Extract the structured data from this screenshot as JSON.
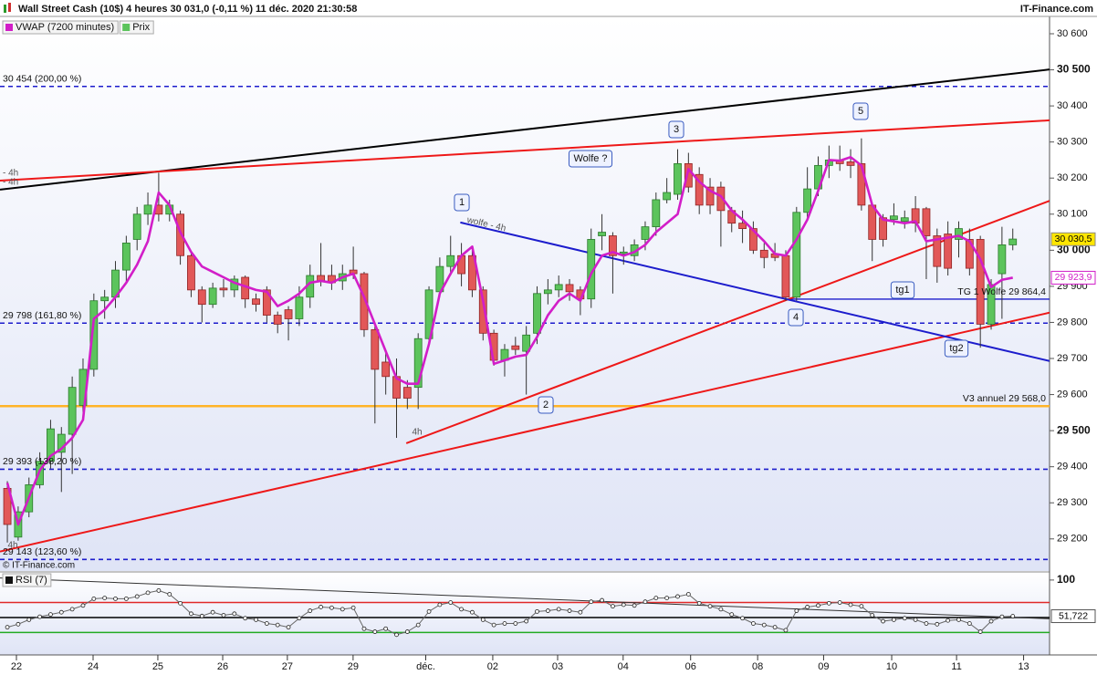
{
  "header": {
    "title": "Wall Street Cash (10$) 4 heures 30 031,0 (-0,11 %) 11 déc. 2020 21:30:58",
    "site": "IT-Finance.com",
    "copyright": "© IT-Finance.com"
  },
  "chart_data": [
    {
      "type": "candlestick",
      "x": [
        0,
        1,
        2,
        3,
        4,
        5,
        6,
        7,
        8,
        9,
        10,
        11,
        12,
        13,
        14,
        15,
        16,
        17,
        18,
        19,
        20,
        21,
        22,
        23,
        24,
        25,
        26,
        27,
        28,
        29,
        30,
        31,
        32,
        33,
        34,
        35,
        36,
        37,
        38,
        39,
        40,
        41,
        42,
        43,
        44,
        45,
        46,
        47,
        48,
        49,
        50,
        51,
        52,
        53,
        54,
        55,
        56,
        57,
        58,
        59,
        60,
        61,
        62,
        63,
        64,
        65,
        66,
        67,
        68,
        69,
        70,
        71,
        72,
        73,
        74,
        75,
        76,
        77,
        78,
        79,
        80,
        81,
        82,
        83,
        84,
        85,
        86,
        87,
        88,
        89,
        90,
        91,
        92,
        93
      ],
      "xlim": [
        -0.68,
        96.4
      ],
      "xticks": [
        {
          "value": 0.84,
          "label": "22"
        },
        {
          "value": 7.93,
          "label": "24"
        },
        {
          "value": 13.92,
          "label": "25"
        },
        {
          "value": 19.92,
          "label": "26"
        },
        {
          "value": 25.9,
          "label": "27"
        },
        {
          "value": 31.98,
          "label": "29"
        },
        {
          "value": 38.7,
          "label": "déc."
        },
        {
          "value": 44.9,
          "label": "02"
        },
        {
          "value": 50.9,
          "label": "03"
        },
        {
          "value": 56.96,
          "label": "04"
        },
        {
          "value": 63.2,
          "label": "06"
        },
        {
          "value": 69.4,
          "label": "08"
        },
        {
          "value": 75.5,
          "label": "09"
        },
        {
          "value": 81.8,
          "label": "10"
        },
        {
          "value": 87.8,
          "label": "11"
        },
        {
          "value": 94.0,
          "label": "13"
        }
      ],
      "ylim": [
        29111,
        30648
      ],
      "yticks": [
        {
          "value": 29200,
          "label": "29 200"
        },
        {
          "value": 29300,
          "label": "29 300"
        },
        {
          "value": 29400,
          "label": "29 400"
        },
        {
          "value": 29500,
          "label": "29 500"
        },
        {
          "value": 29600,
          "label": "29 600"
        },
        {
          "value": 29700,
          "label": "29 700"
        },
        {
          "value": 29800,
          "label": "29 800"
        },
        {
          "value": 29900,
          "label": "29 900"
        },
        {
          "value": 30000,
          "label": "30 000"
        },
        {
          "value": 30100,
          "label": "30 100"
        },
        {
          "value": 30200,
          "label": "30 200"
        },
        {
          "value": 30300,
          "label": "30 300"
        },
        {
          "value": 30400,
          "label": "30 400"
        },
        {
          "value": 30500,
          "label": "30 500"
        },
        {
          "value": 30600,
          "label": "30 600"
        }
      ],
      "candles": {
        "name": "Prix",
        "up_color": "#5cc45c",
        "down_color": "#e25858",
        "open": [
          29340,
          29205,
          29275,
          29350,
          29415,
          29440,
          29490,
          29570,
          29670,
          29860,
          29870,
          29945,
          30030,
          30100,
          30125,
          30100,
          30100,
          29985,
          29890,
          29850,
          29895,
          29890,
          29925,
          29865,
          29890,
          29820,
          29835,
          29810,
          29870,
          29930,
          29930,
          29915,
          29945,
          29935,
          29780,
          29690,
          29650,
          29620,
          29620,
          29755,
          29885,
          29955,
          29985,
          29985,
          29890,
          29770,
          29695,
          29735,
          29720,
          29770,
          29880,
          29890,
          29905,
          29890,
          29865,
          30040,
          30040,
          29990,
          29985,
          30030,
          30065,
          30140,
          30155,
          30240,
          30210,
          30175,
          30175,
          30110,
          30075,
          30060,
          30000,
          29990,
          29985,
          29870,
          30105,
          30170,
          30235,
          30250,
          30245,
          30240,
          30125,
          30090,
          30085,
          30080,
          30115,
          30115,
          30040,
          30045,
          30030,
          30030,
          30030,
          29795,
          29935,
          30015
        ],
        "high": [
          29360,
          29290,
          29370,
          29440,
          29530,
          29510,
          29650,
          29700,
          29880,
          29890,
          29970,
          30040,
          30120,
          30160,
          30215,
          30140,
          30110,
          29990,
          29900,
          29910,
          29920,
          29930,
          29930,
          29880,
          29900,
          29830,
          29845,
          29900,
          29960,
          30020,
          29960,
          29960,
          30010,
          29940,
          29790,
          29720,
          29700,
          29640,
          29770,
          29900,
          29980,
          30040,
          30020,
          30000,
          29900,
          29780,
          29740,
          29760,
          29790,
          29900,
          29920,
          29930,
          29920,
          29900,
          30060,
          30100,
          30050,
          30010,
          30030,
          30080,
          30160,
          30200,
          30280,
          30270,
          30230,
          30200,
          30190,
          30120,
          30110,
          30080,
          30020,
          30020,
          30000,
          30120,
          30230,
          30260,
          30290,
          30290,
          30280,
          30310,
          30130,
          30100,
          30130,
          30110,
          30150,
          30120,
          30060,
          30080,
          30080,
          30060,
          30040,
          29920,
          30065,
          30060
        ],
        "low": [
          29190,
          29195,
          29260,
          29340,
          29395,
          29330,
          29380,
          29550,
          29650,
          29810,
          29840,
          29910,
          30000,
          30070,
          30080,
          30080,
          29960,
          29870,
          29800,
          29840,
          29870,
          29870,
          29840,
          29830,
          29800,
          29770,
          29750,
          29790,
          29840,
          29900,
          29890,
          29890,
          29920,
          29760,
          29520,
          29600,
          29480,
          29560,
          29560,
          29740,
          29870,
          29930,
          29900,
          29870,
          29750,
          29680,
          29650,
          29710,
          29600,
          29740,
          29850,
          29870,
          29860,
          29820,
          29840,
          30000,
          29880,
          29960,
          29970,
          30000,
          30040,
          30130,
          30140,
          30160,
          30100,
          30100,
          30010,
          30050,
          30020,
          29990,
          29950,
          29970,
          29860,
          29860,
          30090,
          30150,
          30200,
          30220,
          30200,
          30110,
          29970,
          30010,
          30070,
          30060,
          30050,
          29920,
          29910,
          29930,
          29980,
          29930,
          29730,
          29780,
          29810,
          30000
        ],
        "close": [
          29240,
          29275,
          29350,
          29415,
          29505,
          29490,
          29620,
          29670,
          29860,
          29870,
          29945,
          30020,
          30100,
          30125,
          30100,
          30125,
          29985,
          29890,
          29850,
          29895,
          29890,
          29920,
          29865,
          29850,
          29820,
          29795,
          29810,
          29870,
          29930,
          29915,
          29910,
          29935,
          29935,
          29780,
          29670,
          29650,
          29590,
          29590,
          29755,
          29890,
          29955,
          29985,
          29935,
          29890,
          29770,
          29695,
          29725,
          29725,
          29765,
          29880,
          29890,
          29905,
          29885,
          29865,
          30030,
          30050,
          29985,
          29995,
          30015,
          30065,
          30140,
          30160,
          30240,
          30175,
          30125,
          30125,
          30110,
          30075,
          30060,
          30000,
          29980,
          29980,
          29870,
          30105,
          30170,
          30235,
          30250,
          30240,
          30235,
          30125,
          30030,
          30030,
          30095,
          30090,
          30075,
          30040,
          29955,
          29950,
          30060,
          29950,
          29795,
          29905,
          30015,
          30031
        ]
      },
      "series": [
        {
          "name": "VWAP (7200 minutes)",
          "color": "#d21ec8",
          "values": [
            29355,
            29240,
            29315,
            29390,
            29430,
            29450,
            29480,
            29530,
            29810,
            29835,
            29870,
            29910,
            29960,
            30025,
            30160,
            30125,
            30050,
            29995,
            29955,
            29940,
            29925,
            29910,
            29900,
            29890,
            29885,
            29845,
            29860,
            29880,
            29910,
            29915,
            29910,
            29925,
            29935,
            29870,
            29795,
            29720,
            29645,
            29630,
            29630,
            29740,
            29880,
            29935,
            29985,
            30010,
            29860,
            29685,
            29695,
            29705,
            29710,
            29760,
            29820,
            29860,
            29880,
            29860,
            29935,
            29985,
            29995,
            29985,
            29995,
            30015,
            30050,
            30075,
            30100,
            30225,
            30190,
            30165,
            30150,
            30110,
            30085,
            30055,
            30025,
            29990,
            29985,
            30030,
            30085,
            30165,
            30250,
            30248,
            30258,
            30235,
            30125,
            30085,
            30080,
            30075,
            30080,
            30025,
            30030,
            30035,
            30040,
            30025,
            29975,
            29898,
            29918,
            29923.9
          ]
        }
      ],
      "last_price": {
        "value": 30030.5,
        "label": "30 030,5",
        "color": "#ffe600"
      },
      "last_vwap": {
        "value": 29923.9,
        "label": "29 923,9"
      },
      "levels": [
        {
          "value": 30454,
          "label": "30 454 (200,00 %)",
          "color": "#1c1ccc",
          "style": "dashed",
          "label_side": "left"
        },
        {
          "value": 29798,
          "label": "29 798 (161,80 %)",
          "color": "#1c1ccc",
          "style": "dashed",
          "label_side": "left"
        },
        {
          "value": 29393,
          "label": "29 393 (138,20 %)",
          "color": "#1c1ccc",
          "style": "dashed",
          "label_side": "left"
        },
        {
          "value": 29143,
          "label": "29 143 (123,60 %)",
          "color": "#1c1ccc",
          "style": "dashed",
          "label_side": "left"
        },
        {
          "value": 29568,
          "label": "V3 annuel 29 568,0",
          "color": "#ffb428",
          "style": "solid",
          "label_side": "right"
        },
        {
          "value": 29864.4,
          "label": "TG 1 Wolfe 29 864,4",
          "color": "#1c1ccc",
          "style": "solid",
          "label_side": "right",
          "start": 71.9
        }
      ],
      "trendlines": [
        {
          "x": [
            -0.68,
            96.4
          ],
          "y": [
            30168,
            30501
          ],
          "color": "#000000"
        },
        {
          "x": [
            -0.68,
            96.4
          ],
          "y": [
            30193,
            30360
          ],
          "color": "#ee1818"
        },
        {
          "x": [
            36.9,
            96.4
          ],
          "y": [
            29465,
            30137
          ],
          "color": "#ee1818"
        },
        {
          "x": [
            -0.68,
            96.4
          ],
          "y": [
            29165,
            29827
          ],
          "color": "#ee1818"
        },
        {
          "x": [
            41.9,
            96.4
          ],
          "y": [
            30077,
            29693
          ],
          "color": "#1c1ccc"
        }
      ],
      "annotations": [
        "1",
        "2",
        "3",
        "4",
        "5",
        "Wolfe ?",
        "tg1",
        "tg2",
        "wolfe - 4h",
        "4h",
        "4h",
        "- 4h",
        "- 4h"
      ]
    },
    {
      "type": "line",
      "name": "RSI (7)",
      "ylim": [
        0,
        109.6
      ],
      "yticks": [
        100
      ],
      "values": [
        37,
        41,
        47,
        51,
        54,
        57,
        61,
        66,
        75,
        76,
        75,
        75,
        78,
        83,
        86,
        81,
        69,
        55,
        52,
        57,
        53,
        55,
        49,
        47,
        42,
        40,
        37,
        49,
        59,
        64,
        63,
        61,
        63,
        35,
        31,
        35,
        27,
        31,
        40,
        58,
        67,
        70,
        61,
        57,
        47,
        40,
        42,
        42,
        45,
        58,
        59,
        61,
        59,
        57,
        71,
        73,
        65,
        67,
        66,
        71,
        76,
        76,
        78,
        81,
        69,
        65,
        61,
        54,
        49,
        42,
        40,
        37,
        33,
        59,
        64,
        66,
        69,
        70,
        67,
        65,
        53,
        45,
        47,
        49,
        47,
        42,
        41,
        46,
        47,
        42,
        31,
        45,
        51,
        51.722
      ],
      "last": {
        "value": 51.722,
        "label": "51,722"
      },
      "levels": [
        {
          "value": 70,
          "color": "#e02828"
        },
        {
          "value": 50,
          "color": "#000000"
        },
        {
          "value": 30,
          "color": "#22aa22"
        }
      ],
      "trendlines": [
        {
          "x": [
            -0.68,
            96.4
          ],
          "y": [
            102.7,
            48.2
          ],
          "color": "#333333"
        }
      ]
    }
  ]
}
